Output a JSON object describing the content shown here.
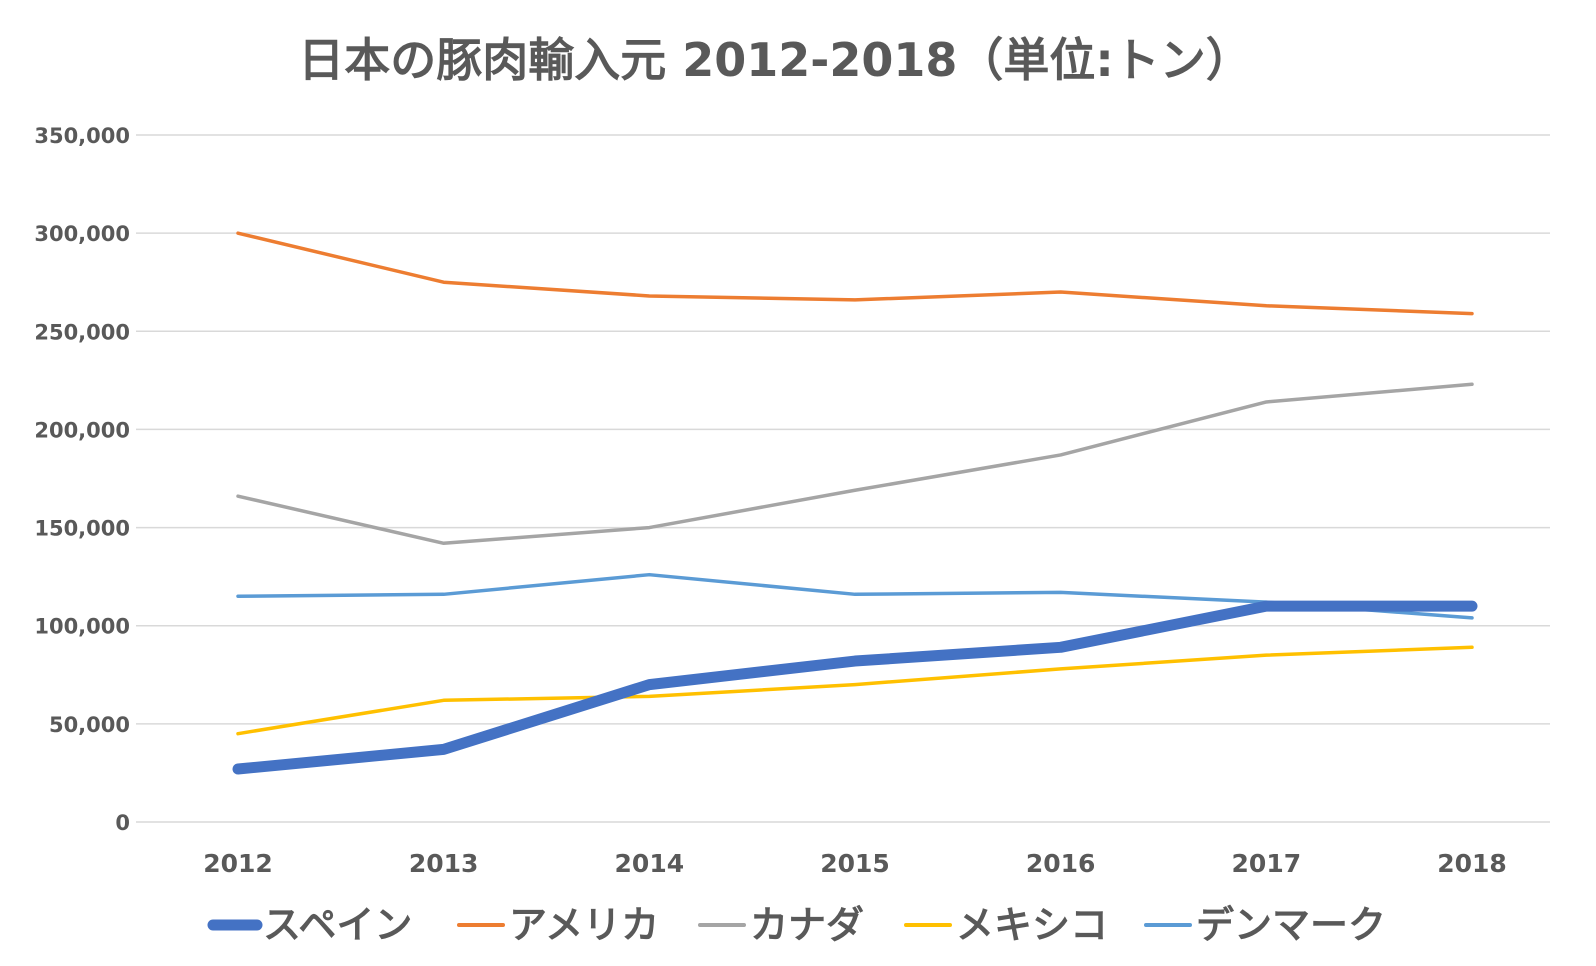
{
  "chart_data": {
    "type": "line",
    "title": "日本の豚肉輸入元  2012-2018（単位:トン）",
    "xlabel": "",
    "ylabel": "",
    "ylim": [
      0,
      350000
    ],
    "yticks": [
      0,
      50000,
      100000,
      150000,
      200000,
      250000,
      300000,
      350000
    ],
    "ytick_labels": [
      "0",
      "50,000",
      "100,000",
      "150,000",
      "200,000",
      "250,000",
      "300,000",
      "350,000"
    ],
    "grid": true,
    "legend_position": "bottom",
    "categories": [
      "2012",
      "2013",
      "2014",
      "2015",
      "2016",
      "2017",
      "2018"
    ],
    "series": [
      {
        "name": "スペイン",
        "color": "#4472c4",
        "emphasis": true,
        "values": [
          27000,
          37000,
          70000,
          82000,
          89000,
          110000,
          110000
        ]
      },
      {
        "name": "アメリカ",
        "color": "#ed7d31",
        "values": [
          300000,
          275000,
          268000,
          266000,
          270000,
          263000,
          259000
        ]
      },
      {
        "name": "カナダ",
        "color": "#a5a5a5",
        "values": [
          166000,
          142000,
          150000,
          169000,
          187000,
          214000,
          223000
        ]
      },
      {
        "name": "メキシコ",
        "color": "#ffc000",
        "values": [
          45000,
          62000,
          64000,
          70000,
          78000,
          85000,
          89000
        ]
      },
      {
        "name": "デンマーク",
        "color": "#5b9bd5",
        "values": [
          115000,
          116000,
          126000,
          116000,
          117000,
          112000,
          104000
        ]
      }
    ]
  }
}
